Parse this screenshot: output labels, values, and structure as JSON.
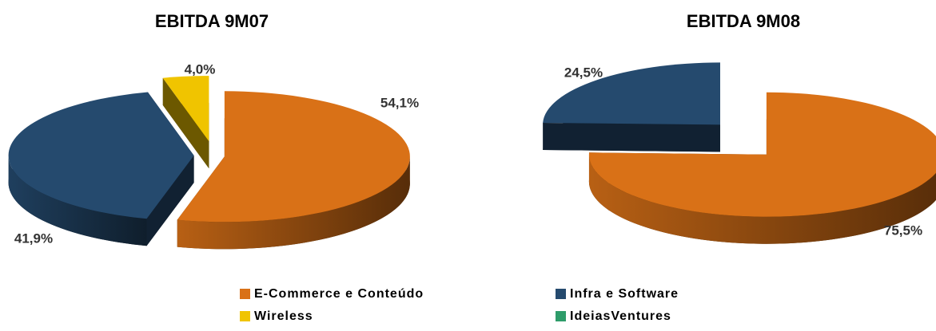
{
  "chart_data": [
    {
      "type": "pie",
      "title": "EBITDA 9M07",
      "categories": [
        "E-Commerce e Conteúdo",
        "Infra e Software",
        "Wireless"
      ],
      "values": [
        54.1,
        41.9,
        4.0
      ],
      "value_labels": [
        "54,1%",
        "41,9%",
        "4,0%"
      ],
      "colors": [
        "#d97117",
        "#254a6e",
        "#f0c400"
      ]
    },
    {
      "type": "pie",
      "title": "EBITDA 9M08",
      "categories": [
        "E-Commerce e Conteúdo",
        "Infra e Software"
      ],
      "values": [
        75.5,
        24.5
      ],
      "value_labels": [
        "75,5%",
        "24,5%"
      ],
      "colors": [
        "#d97117",
        "#254a6e"
      ]
    }
  ],
  "legend": {
    "items": [
      {
        "name": "E-Commerce e Conteúdo",
        "color": "#d97117"
      },
      {
        "name": "Infra e Software",
        "color": "#254a6e"
      },
      {
        "name": "Wireless",
        "color": "#f0c400"
      },
      {
        "name": "IdeiasVentures",
        "color": "#2e9c6a"
      }
    ]
  }
}
